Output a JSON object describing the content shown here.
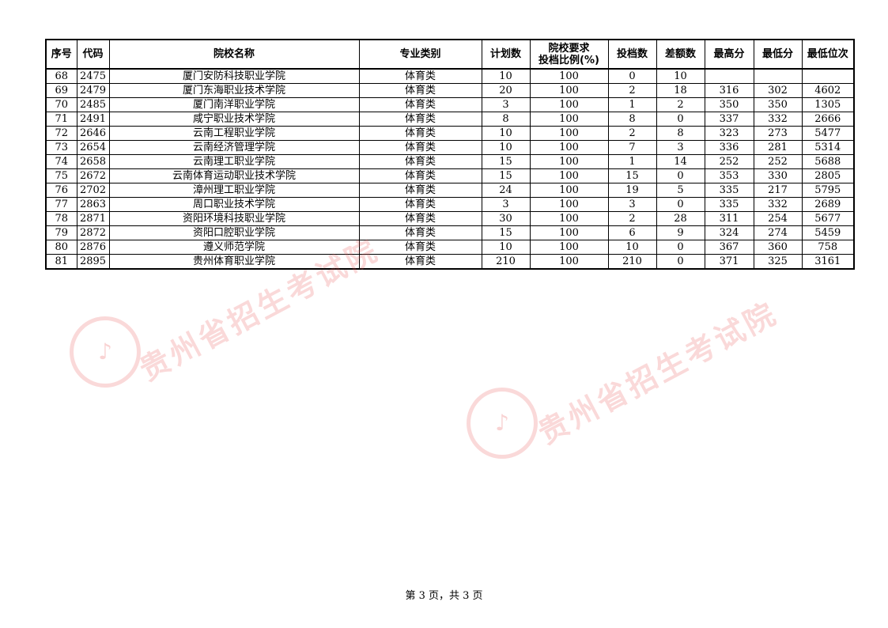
{
  "table": {
    "headers": [
      "序号",
      "代码",
      "院校名称",
      "专业类别",
      "计划数",
      "院校要求\n投档比例(%)",
      "投档数",
      "差额数",
      "最高分",
      "最低分",
      "最低位次"
    ],
    "rows": [
      [
        "68",
        "2475",
        "厦门安防科技职业学院",
        "体育类",
        "10",
        "100",
        "0",
        "10",
        "",
        "",
        ""
      ],
      [
        "69",
        "2479",
        "厦门东海职业技术学院",
        "体育类",
        "20",
        "100",
        "2",
        "18",
        "316",
        "302",
        "4602"
      ],
      [
        "70",
        "2485",
        "厦门南洋职业学院",
        "体育类",
        "3",
        "100",
        "1",
        "2",
        "350",
        "350",
        "1305"
      ],
      [
        "71",
        "2491",
        "咸宁职业技术学院",
        "体育类",
        "8",
        "100",
        "8",
        "0",
        "337",
        "332",
        "2666"
      ],
      [
        "72",
        "2646",
        "云南工程职业学院",
        "体育类",
        "10",
        "100",
        "2",
        "8",
        "323",
        "273",
        "5477"
      ],
      [
        "73",
        "2654",
        "云南经济管理学院",
        "体育类",
        "10",
        "100",
        "7",
        "3",
        "336",
        "281",
        "5314"
      ],
      [
        "74",
        "2658",
        "云南理工职业学院",
        "体育类",
        "15",
        "100",
        "1",
        "14",
        "252",
        "252",
        "5688"
      ],
      [
        "75",
        "2672",
        "云南体育运动职业技术学院",
        "体育类",
        "15",
        "100",
        "15",
        "0",
        "353",
        "330",
        "2805"
      ],
      [
        "76",
        "2702",
        "漳州理工职业学院",
        "体育类",
        "24",
        "100",
        "19",
        "5",
        "335",
        "217",
        "5795"
      ],
      [
        "77",
        "2863",
        "周口职业技术学院",
        "体育类",
        "3",
        "100",
        "3",
        "0",
        "335",
        "332",
        "2689"
      ],
      [
        "78",
        "2871",
        "资阳环境科技职业学院",
        "体育类",
        "30",
        "100",
        "2",
        "28",
        "311",
        "254",
        "5677"
      ],
      [
        "79",
        "2872",
        "资阳口腔职业学院",
        "体育类",
        "15",
        "100",
        "6",
        "9",
        "324",
        "274",
        "5459"
      ],
      [
        "80",
        "2876",
        "遵义师范学院",
        "体育类",
        "10",
        "100",
        "10",
        "0",
        "367",
        "360",
        "758"
      ],
      [
        "81",
        "2895",
        "贵州体育职业学院",
        "体育类",
        "210",
        "100",
        "210",
        "0",
        "371",
        "325",
        "3161"
      ]
    ]
  },
  "watermark": {
    "text": "贵州省招生考试院",
    "color": "#e65050"
  },
  "footer": {
    "page_label": "第 3 页，共 3 页"
  }
}
